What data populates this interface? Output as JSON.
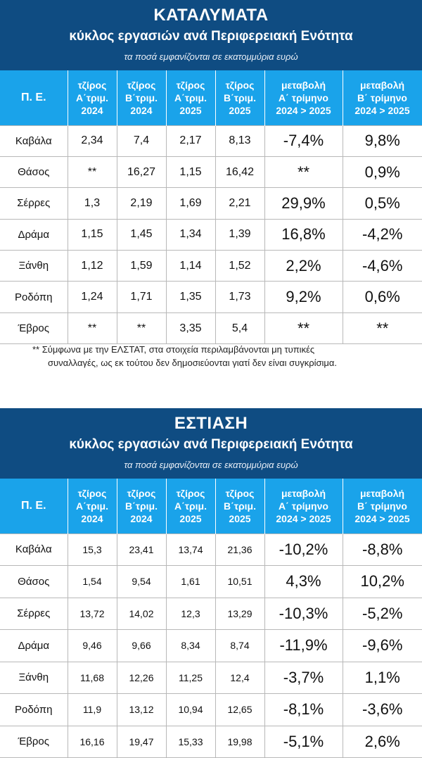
{
  "accommodation": {
    "title": "ΚΑΤΑΛΥΜΑΤΑ",
    "subtitle": "κύκλος εργασιών ανά Περιφερειακή Ενότητα",
    "caption": "τα ποσά εμφανίζονται σε εκατομμύρια ευρώ",
    "headers": [
      [
        "Π. Ε."
      ],
      [
        "τζίρος",
        "Α΄τριμ.",
        "2024"
      ],
      [
        "τζίρος",
        "Β΄τριμ.",
        "2024"
      ],
      [
        "τζίρος",
        "Α΄τριμ.",
        "2025"
      ],
      [
        "τζίρος",
        "Β΄τριμ.",
        "2025"
      ],
      [
        "μεταβολή",
        "Α΄ τρίμηνο",
        "2024 > 2025"
      ],
      [
        "μεταβολή",
        "Β΄ τρίμηνο",
        "2024 > 2025"
      ]
    ],
    "rows": [
      [
        "Καβάλα",
        "2,34",
        "7,4",
        "2,17",
        "8,13",
        "-7,4%",
        "9,8%"
      ],
      [
        "Θάσος",
        "**",
        "16,27",
        "1,15",
        "16,42",
        "**",
        "0,9%"
      ],
      [
        "Σέρρες",
        "1,3",
        "2,19",
        "1,69",
        "2,21",
        "29,9%",
        "0,5%"
      ],
      [
        "Δράμα",
        "1,15",
        "1,45",
        "1,34",
        "1,39",
        "16,8%",
        "-4,2%"
      ],
      [
        "Ξάνθη",
        "1,12",
        "1,59",
        "1,14",
        "1,52",
        "2,2%",
        "-4,6%"
      ],
      [
        "Ροδόπη",
        "1,24",
        "1,71",
        "1,35",
        "1,73",
        "9,2%",
        "0,6%"
      ],
      [
        "Έβρος",
        "**",
        "**",
        "3,35",
        "5,4",
        "**",
        "**"
      ]
    ],
    "footnote_line1": "** Σύμφωνα με την ΕΛΣΤΑΤ, στα στοιχεία περιλαμβάνονται μη τυπικές",
    "footnote_line2": "συναλλαγές, ως εκ τούτου δεν δημοσιεύονται γιατί δεν είναι συγκρίσιμα."
  },
  "dining": {
    "title": "ΕΣΤΙΑΣΗ",
    "subtitle": "κύκλος εργασιών ανά Περιφερειακή Ενότητα",
    "caption": "τα ποσά εμφανίζονται σε εκατομμύρια ευρώ",
    "headers": [
      [
        "Π. Ε."
      ],
      [
        "τζίρος",
        "Α΄τριμ.",
        "2024"
      ],
      [
        "τζίρος",
        "Β΄τριμ.",
        "2024"
      ],
      [
        "τζίρος",
        "Α΄τριμ.",
        "2025"
      ],
      [
        "τζίρος",
        "Β΄τριμ.",
        "2025"
      ],
      [
        "μεταβολή",
        "Α΄ τρίμηνο",
        "2024 > 2025"
      ],
      [
        "μεταβολή",
        "Β΄ τρίμηνο",
        "2024 > 2025"
      ]
    ],
    "rows": [
      [
        "Καβάλα",
        "15,3",
        "23,41",
        "13,74",
        "21,36",
        "-10,2%",
        "-8,8%"
      ],
      [
        "Θάσος",
        "1,54",
        "9,54",
        "1,61",
        "10,51",
        "4,3%",
        "10,2%"
      ],
      [
        "Σέρρες",
        "13,72",
        "14,02",
        "12,3",
        "13,29",
        "-10,3%",
        "-5,2%"
      ],
      [
        "Δράμα",
        "9,46",
        "9,66",
        "8,34",
        "8,74",
        "-11,9%",
        "-9,6%"
      ],
      [
        "Ξάνθη",
        "11,68",
        "12,26",
        "11,25",
        "12,4",
        "-3,7%",
        "1,1%"
      ],
      [
        "Ροδόπη",
        "11,9",
        "13,12",
        "10,94",
        "12,65",
        "-8,1%",
        "-3,6%"
      ],
      [
        "Έβρος",
        "16,16",
        "19,47",
        "15,33",
        "19,98",
        "-5,1%",
        "2,6%"
      ]
    ]
  },
  "colors": {
    "header_dark_blue": "#0f4c82",
    "header_light_blue": "#1aa3ea"
  }
}
